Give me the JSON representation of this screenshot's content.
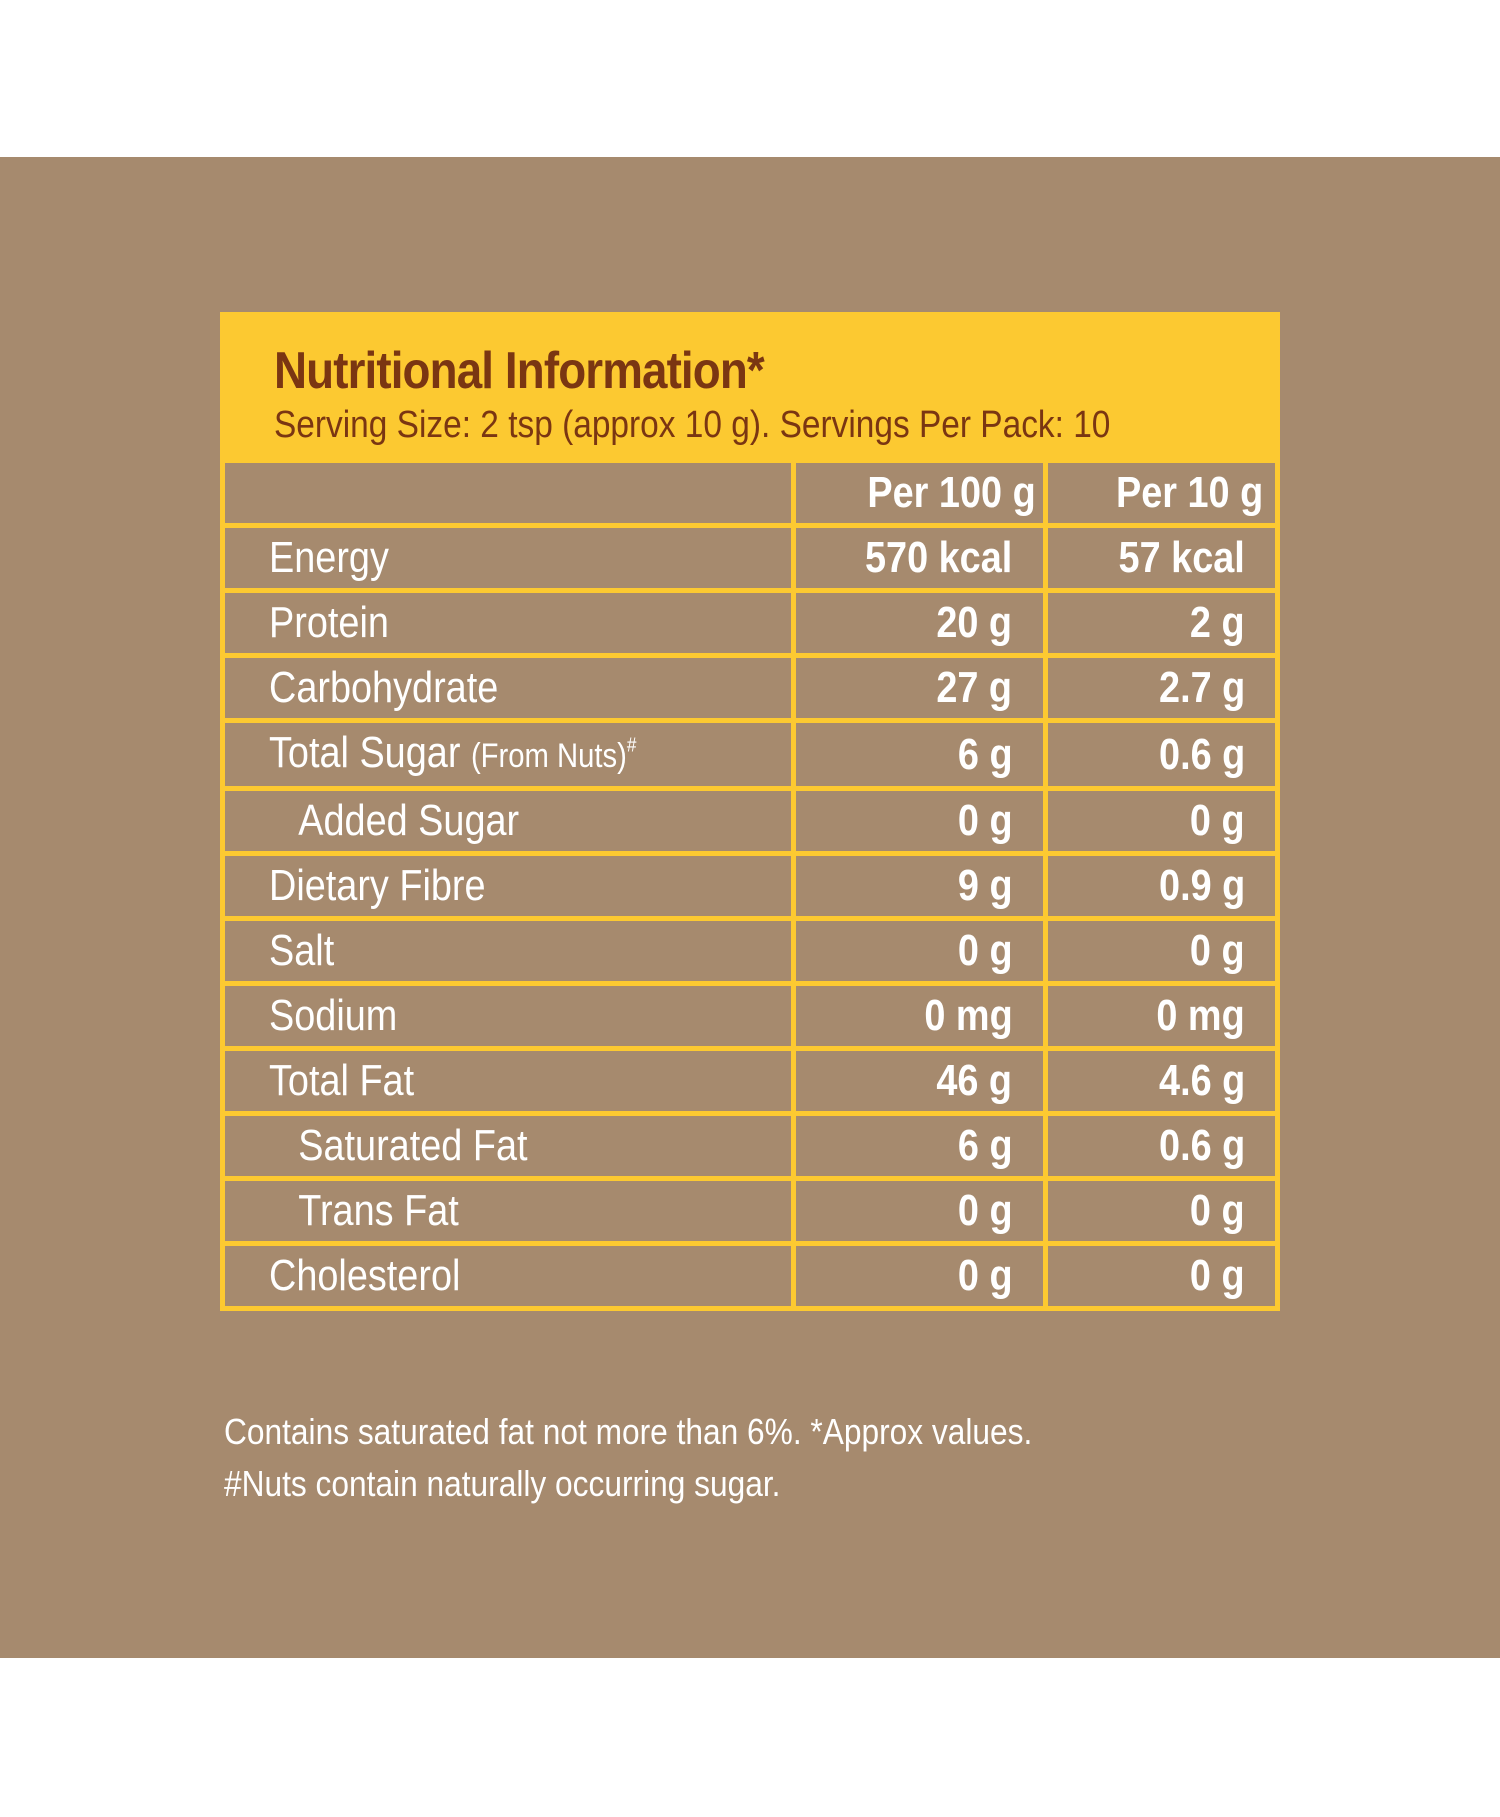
{
  "colors": {
    "background_panel": "#a68a6e",
    "accent_yellow": "#fcc931",
    "title_brown": "#7a3612",
    "text_white": "#ffffff"
  },
  "header": {
    "title": "Nutritional Information*",
    "subtitle": "Serving Size: 2 tsp (approx 10 g). Servings Per Pack: 10"
  },
  "table": {
    "columns": [
      "",
      "Per 100 g",
      "Per 10 g"
    ],
    "rows": [
      {
        "name": "Energy",
        "note": "",
        "sup": "",
        "per100": "570 kcal",
        "per10": "57 kcal",
        "indent": false
      },
      {
        "name": "Protein",
        "note": "",
        "sup": "",
        "per100": "20 g",
        "per10": "2 g",
        "indent": false
      },
      {
        "name": "Carbohydrate",
        "note": "",
        "sup": "",
        "per100": "27 g",
        "per10": "2.7 g",
        "indent": false
      },
      {
        "name": "Total Sugar",
        "note": "(From Nuts)",
        "sup": "#",
        "per100": "6 g",
        "per10": "0.6 g",
        "indent": false
      },
      {
        "name": "Added Sugar",
        "note": "",
        "sup": "",
        "per100": "0 g",
        "per10": "0 g",
        "indent": true
      },
      {
        "name": "Dietary Fibre",
        "note": "",
        "sup": "",
        "per100": "9 g",
        "per10": "0.9 g",
        "indent": false
      },
      {
        "name": "Salt",
        "note": "",
        "sup": "",
        "per100": "0 g",
        "per10": "0 g",
        "indent": false
      },
      {
        "name": "Sodium",
        "note": "",
        "sup": "",
        "per100": "0 mg",
        "per10": "0 mg",
        "indent": false
      },
      {
        "name": "Total Fat",
        "note": "",
        "sup": "",
        "per100": "46 g",
        "per10": "4.6 g",
        "indent": false
      },
      {
        "name": "Saturated Fat",
        "note": "",
        "sup": "",
        "per100": "6 g",
        "per10": "0.6 g",
        "indent": true
      },
      {
        "name": "Trans Fat",
        "note": "",
        "sup": "",
        "per100": "0 g",
        "per10": "0 g",
        "indent": true
      },
      {
        "name": "Cholesterol",
        "note": "",
        "sup": "",
        "per100": "0 g",
        "per10": "0 g",
        "indent": false
      }
    ]
  },
  "footnotes": [
    "Contains saturated fat not more than 6%. *Approx values.",
    "#Nuts contain naturally occurring sugar."
  ]
}
